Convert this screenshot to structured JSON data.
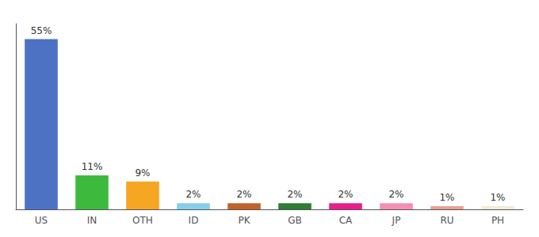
{
  "chart_data": {
    "type": "bar",
    "categories": [
      "US",
      "IN",
      "OTH",
      "ID",
      "PK",
      "GB",
      "CA",
      "JP",
      "RU",
      "PH"
    ],
    "values": [
      55,
      11,
      9,
      2,
      2,
      2,
      2,
      2,
      1,
      1
    ],
    "value_labels": [
      "55%",
      "11%",
      "9%",
      "2%",
      "2%",
      "2%",
      "2%",
      "2%",
      "1%",
      "1%"
    ],
    "colors": [
      "#4d72c4",
      "#3dba3d",
      "#f5a623",
      "#87ceeb",
      "#c0622b",
      "#2e7d32",
      "#e91e8c",
      "#f48fb1",
      "#e8a090",
      "#f0ecd5"
    ],
    "ylim": [
      0,
      60
    ],
    "data_labels": true,
    "tick_labels": "x",
    "grid": false
  }
}
